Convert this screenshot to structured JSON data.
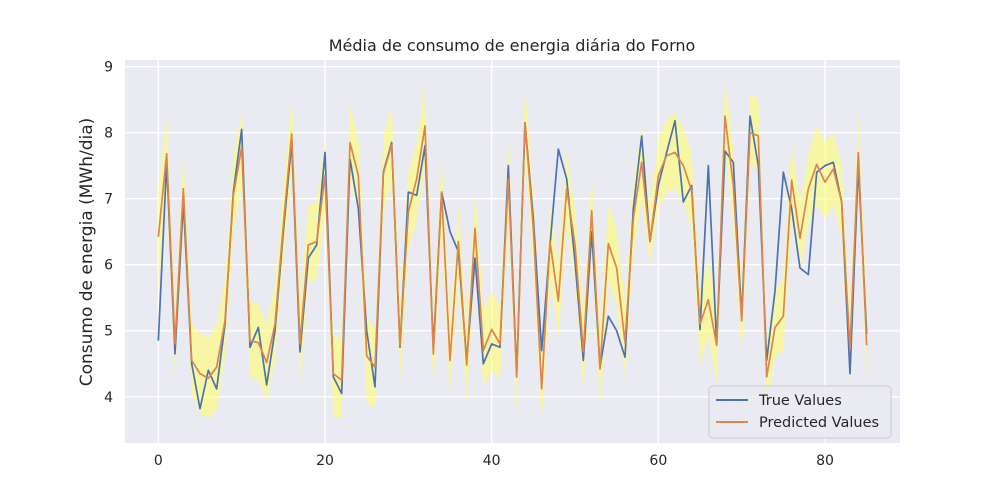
{
  "chart_data": {
    "type": "line",
    "title": "Média de consumo de energia diária do Forno",
    "xlabel": "",
    "ylabel": "Consumo de energia (MWh/dia)",
    "xlim": [
      -4,
      89
    ],
    "ylim": [
      3.3,
      9.1
    ],
    "x_ticks": [
      0,
      20,
      40,
      60,
      80
    ],
    "y_ticks": [
      4,
      5,
      6,
      7,
      8,
      9
    ],
    "grid": true,
    "legend_position": "lower-right",
    "x": [
      0,
      1,
      2,
      3,
      4,
      5,
      6,
      7,
      8,
      9,
      10,
      11,
      12,
      13,
      14,
      15,
      16,
      17,
      18,
      19,
      20,
      21,
      22,
      23,
      24,
      25,
      26,
      27,
      28,
      29,
      30,
      31,
      32,
      33,
      34,
      35,
      36,
      37,
      38,
      39,
      40,
      41,
      42,
      43,
      44,
      45,
      46,
      47,
      48,
      49,
      50,
      51,
      52,
      53,
      54,
      55,
      56,
      57,
      58,
      59,
      60,
      61,
      62,
      63,
      64,
      65,
      66,
      67,
      68,
      69,
      70,
      71,
      72,
      73,
      74,
      75,
      76,
      77,
      78,
      79,
      80,
      81,
      82,
      83,
      84,
      85
    ],
    "series": [
      {
        "name": "True Values",
        "color": "#4c72b0",
        "values": [
          4.85,
          7.55,
          4.65,
          6.95,
          4.5,
          3.82,
          4.4,
          4.12,
          5.1,
          7.1,
          8.05,
          4.75,
          5.05,
          4.18,
          5.0,
          6.5,
          7.85,
          4.68,
          6.1,
          6.3,
          7.7,
          4.3,
          4.05,
          7.6,
          6.85,
          5.0,
          4.15,
          7.4,
          7.85,
          4.75,
          7.1,
          7.05,
          7.8,
          4.75,
          7.1,
          6.5,
          6.2,
          4.55,
          6.1,
          4.5,
          4.8,
          4.75,
          7.5,
          4.35,
          8.15,
          6.7,
          4.7,
          6.3,
          7.75,
          7.3,
          6.05,
          4.55,
          6.5,
          4.45,
          5.22,
          5.0,
          4.6,
          6.85,
          7.95,
          6.35,
          7.2,
          7.7,
          8.18,
          6.95,
          7.2,
          5.02,
          7.5,
          4.8,
          7.72,
          7.55,
          5.2,
          8.25,
          7.5,
          4.55,
          5.6,
          7.4,
          6.85,
          5.95,
          5.85,
          7.4,
          7.5,
          7.55,
          6.95,
          4.35,
          7.5,
          4.95
        ]
      },
      {
        "name": "Predicted Values",
        "color": "#dd8452",
        "values": [
          6.42,
          7.68,
          4.8,
          7.15,
          4.55,
          4.35,
          4.28,
          4.45,
          5.15,
          7.05,
          7.78,
          4.85,
          4.82,
          4.52,
          5.1,
          6.6,
          7.98,
          4.8,
          6.3,
          6.35,
          7.35,
          4.35,
          4.25,
          7.85,
          7.35,
          4.62,
          4.45,
          7.38,
          7.82,
          4.78,
          6.8,
          7.3,
          8.1,
          4.65,
          7.1,
          4.55,
          6.35,
          4.48,
          6.55,
          4.7,
          5.02,
          4.8,
          7.3,
          4.3,
          8.15,
          6.55,
          4.12,
          6.35,
          5.45,
          7.15,
          6.3,
          4.68,
          6.82,
          4.42,
          6.32,
          5.95,
          4.82,
          6.7,
          7.55,
          6.35,
          7.35,
          7.65,
          7.7,
          7.5,
          7.12,
          5.1,
          5.47,
          4.78,
          8.25,
          7.2,
          5.15,
          8.0,
          7.95,
          4.3,
          5.05,
          5.22,
          7.28,
          6.4,
          7.15,
          7.52,
          7.25,
          7.45,
          6.95,
          4.72,
          7.7,
          4.78
        ]
      }
    ],
    "confidence_band": {
      "color": "#ffff66",
      "opacity": 0.55,
      "lower": [
        5.6,
        7.0,
        4.3,
        6.6,
        4.05,
        3.75,
        3.68,
        3.8,
        4.6,
        6.5,
        7.2,
        4.3,
        4.25,
        3.95,
        4.55,
        6.0,
        7.4,
        4.2,
        5.7,
        5.8,
        6.8,
        3.7,
        3.68,
        7.3,
        6.8,
        3.9,
        3.85,
        6.8,
        7.25,
        4.2,
        6.2,
        6.7,
        7.5,
        4.1,
        6.55,
        4.0,
        5.8,
        3.9,
        6.0,
        4.15,
        4.4,
        4.25,
        6.75,
        3.75,
        7.6,
        6.0,
        3.55,
        5.8,
        4.9,
        6.6,
        5.75,
        4.1,
        6.25,
        3.85,
        5.75,
        5.4,
        4.25,
        6.15,
        7.0,
        6.0,
        6.85,
        7.1,
        7.15,
        6.95,
        6.55,
        4.5,
        4.9,
        4.2,
        7.7,
        6.65,
        4.6,
        7.55,
        7.4,
        3.8,
        4.6,
        4.7,
        6.75,
        5.9,
        6.6,
        6.9,
        6.7,
        6.9,
        6.4,
        4.15,
        7.1,
        4.2
      ],
      "upper": [
        7.15,
        8.25,
        5.3,
        7.7,
        5.1,
        4.95,
        4.9,
        5.1,
        5.8,
        7.65,
        8.35,
        5.45,
        5.4,
        5.1,
        5.7,
        7.15,
        8.55,
        5.4,
        6.9,
        6.95,
        7.9,
        4.95,
        4.85,
        8.42,
        7.9,
        5.2,
        5.05,
        7.95,
        8.4,
        5.35,
        7.4,
        7.85,
        8.68,
        5.2,
        7.65,
        5.1,
        6.9,
        5.05,
        7.1,
        5.3,
        5.6,
        5.35,
        7.85,
        4.85,
        8.7,
        7.1,
        4.7,
        6.9,
        6.0,
        7.7,
        6.85,
        5.25,
        7.4,
        5.0,
        6.9,
        6.55,
        5.4,
        7.25,
        8.1,
        6.9,
        7.9,
        8.2,
        8.3,
        8.05,
        7.7,
        5.65,
        6.05,
        5.35,
        8.8,
        7.75,
        5.7,
        8.58,
        8.5,
        4.85,
        5.6,
        5.8,
        7.85,
        6.95,
        7.7,
        8.1,
        7.85,
        8.0,
        7.5,
        5.3,
        8.28,
        5.35
      ]
    }
  }
}
